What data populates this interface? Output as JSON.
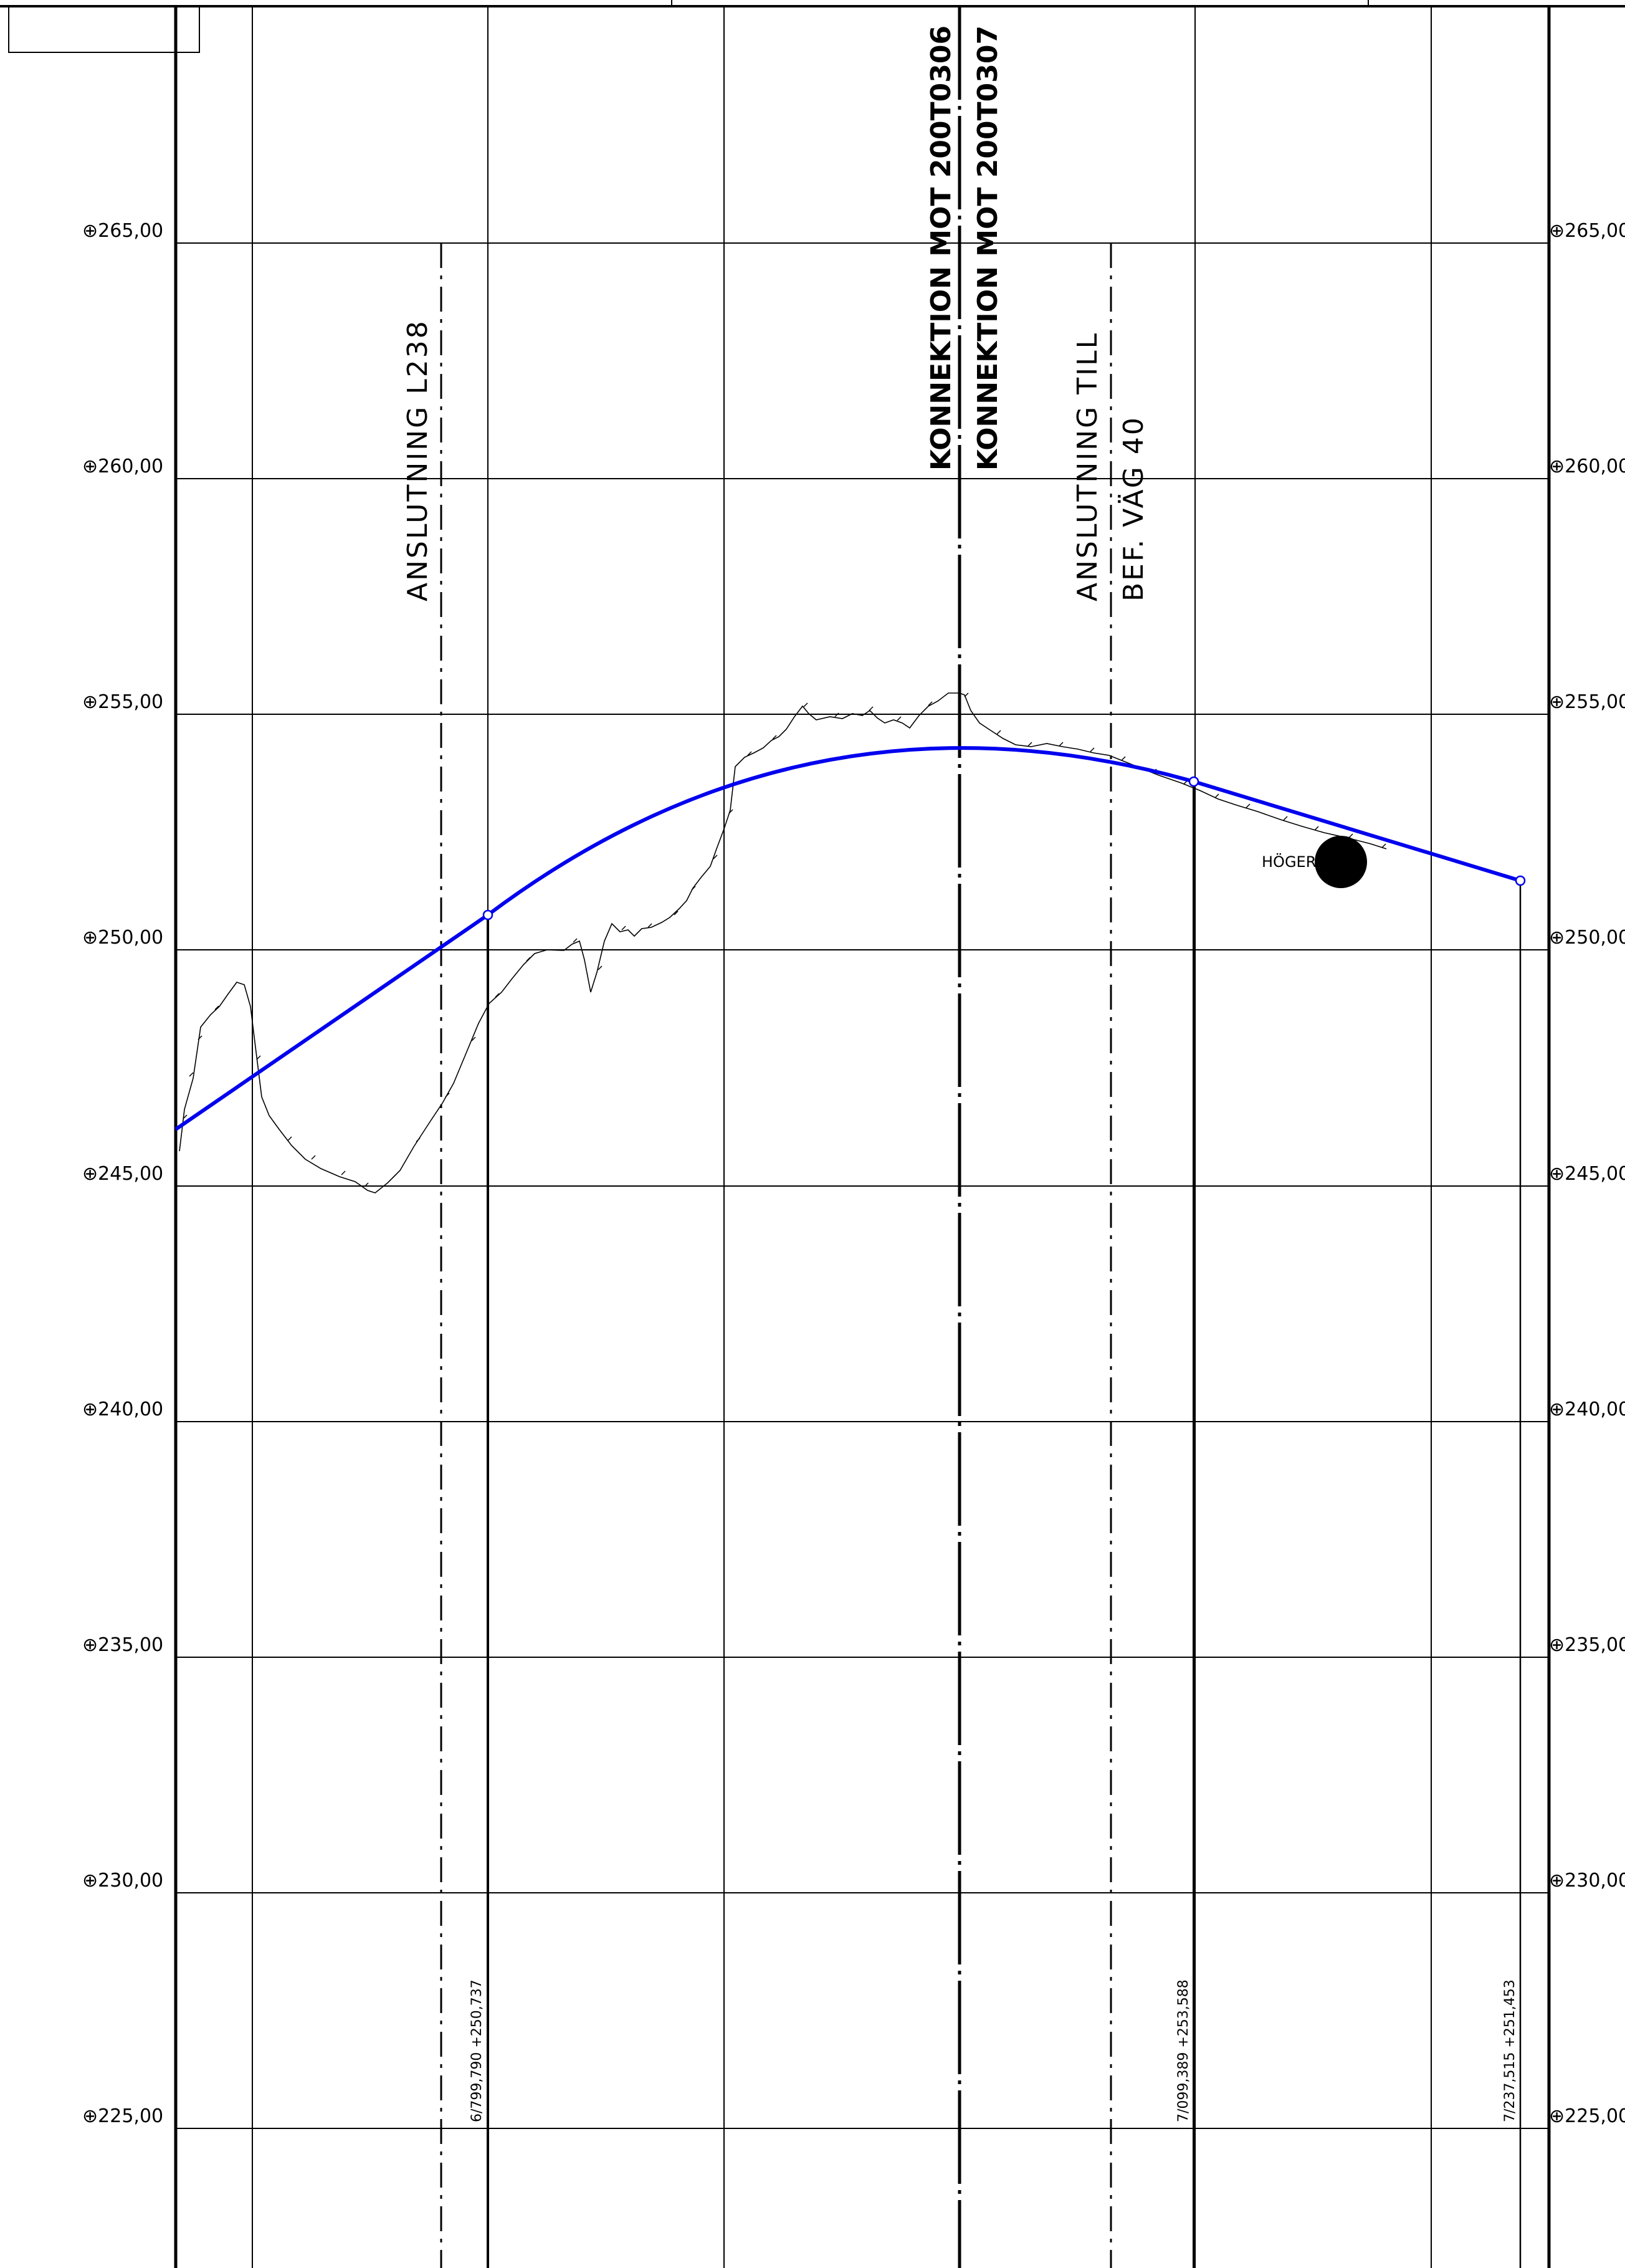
{
  "levels": {
    "l265": "265,00",
    "l260": "260,00",
    "l255": "255,00",
    "l250": "250,00",
    "l245": "245,00",
    "l240": "240,00",
    "l235": "235,00",
    "l230": "230,00",
    "l225": "225,00"
  },
  "labels": {
    "anslutning_l238": "ANSLUTNING L238",
    "konnektion_1": "KONNEKTION MOT 200T0306",
    "konnektion_2": "KONNEKTION MOT 200T0307",
    "anslutning_till": "ANSLUTNING  TILL",
    "bef_vag": "BEF. VÄG 40",
    "hoger": "HÖGER"
  },
  "chainage": {
    "p1": "6/799,790   +250,737",
    "p2": "7/099,389   +253,588",
    "p3": "7/237,515   +251,453"
  },
  "colors": {
    "design_line": "#0000ee",
    "grid": "#000000",
    "terrain": "#000000"
  }
}
